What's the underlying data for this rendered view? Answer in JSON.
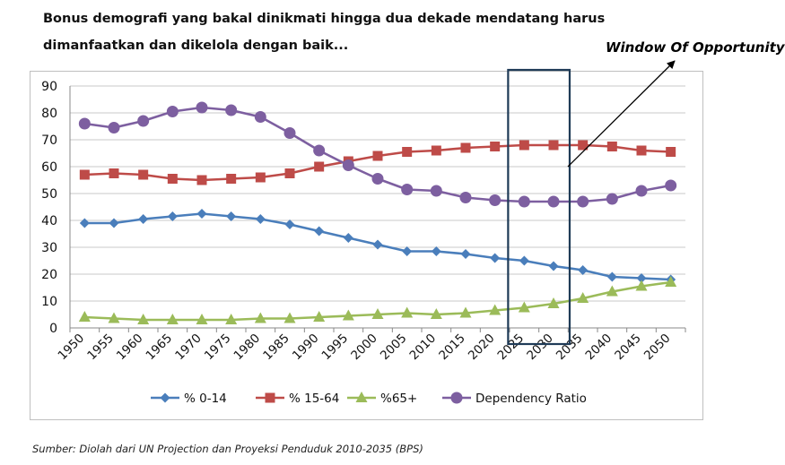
{
  "headline": {
    "line1": "Bonus demografi yang bakal dinikmati hingga dua dekade mendatang harus",
    "line2": "dimanfaatkan  dan dikelola dengan baik..."
  },
  "source": "Sumber: Diolah dari UN Projection dan Proyeksi  Penduduk 2010-2035 (BPS)",
  "chart_data": {
    "type": "line",
    "title": "",
    "xlabel": "",
    "ylabel": "",
    "categories": [
      "1950",
      "1955",
      "1960",
      "1965",
      "1970",
      "1975",
      "1980",
      "1985",
      "1990",
      "1995",
      "2000",
      "2005",
      "2010",
      "2015",
      "2020",
      "2025",
      "2030",
      "2035",
      "2040",
      "2045",
      "2050"
    ],
    "ylim": [
      0,
      90
    ],
    "yticks": [
      0,
      10,
      20,
      30,
      40,
      50,
      60,
      70,
      80,
      90
    ],
    "grid": true,
    "legend_position": "bottom",
    "series": [
      {
        "name": "% 0-14",
        "color": "#4a7ebb",
        "marker": "diamond",
        "values": [
          39,
          39,
          40.5,
          41.5,
          42.5,
          41.5,
          40.5,
          38.5,
          36,
          33.5,
          31,
          28.5,
          28.5,
          27.5,
          26,
          25,
          23,
          21.5,
          19,
          18.5,
          18
        ]
      },
      {
        "name": "% 15-64",
        "color": "#be4b48",
        "marker": "square",
        "values": [
          57,
          57.5,
          57,
          55.5,
          55,
          55.5,
          56,
          57.5,
          60,
          62,
          64,
          65.5,
          66,
          67,
          67.5,
          68,
          68,
          68,
          67.5,
          66,
          65.5
        ]
      },
      {
        "name": "%65+",
        "color": "#9bbb59",
        "marker": "triangle",
        "values": [
          4,
          3.5,
          3,
          3,
          3,
          3,
          3.5,
          3.5,
          4,
          4.5,
          5,
          5.5,
          5,
          5.5,
          6.5,
          7.5,
          9,
          11,
          13.5,
          15.5,
          17
        ]
      },
      {
        "name": "Dependency Ratio",
        "color": "#7d5fa0",
        "marker": "circle",
        "values": [
          76,
          74.5,
          77,
          80.5,
          82,
          81,
          78.5,
          72.5,
          66,
          60.5,
          55.5,
          51.5,
          51,
          48.5,
          47.5,
          47,
          47,
          47,
          48,
          51,
          53
        ]
      }
    ],
    "annotation": {
      "label": "Window Of Opportunity",
      "highlight_from": "2025",
      "highlight_to": "2030",
      "box_color": "#1f3b57"
    }
  }
}
